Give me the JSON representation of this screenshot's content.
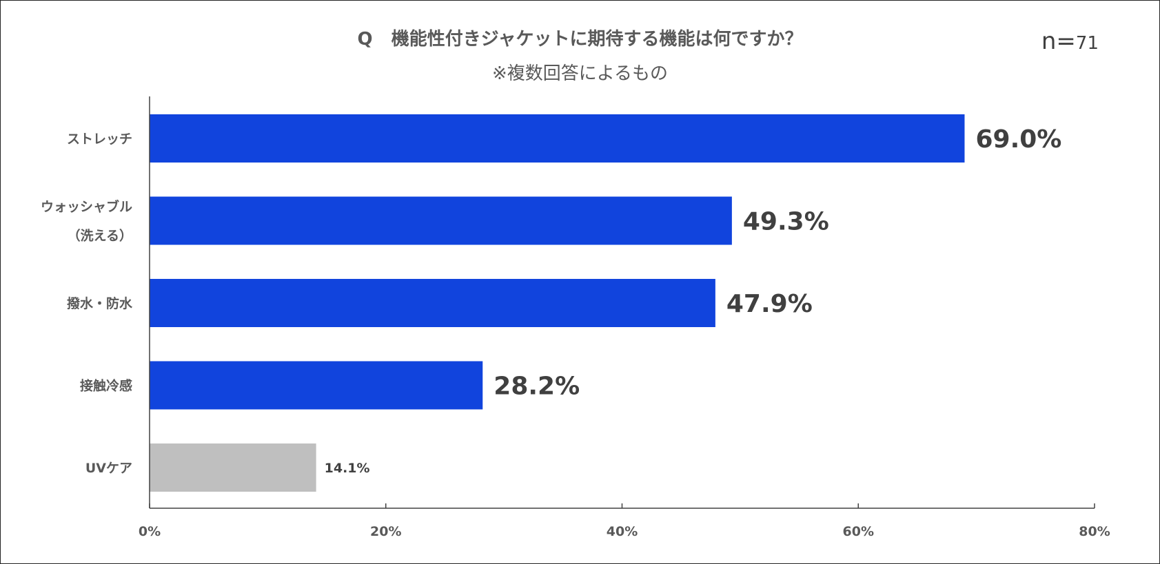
{
  "chart_data": {
    "type": "bar",
    "orientation": "horizontal",
    "title": "Q   機能性付きジャケットに期待する機能は何ですか？",
    "subtitle": "※複数回答によるもの",
    "sample_size_prefix": "n=",
    "sample_size": "71",
    "categories": [
      [
        "ストレッチ"
      ],
      [
        "ウォッシャブル",
        "（洗える）"
      ],
      [
        "撥水・防水"
      ],
      [
        "接触冷感"
      ],
      [
        "UVケア"
      ]
    ],
    "values": [
      69.0,
      49.3,
      47.9,
      28.2,
      14.1
    ],
    "value_labels": [
      "69.0%",
      "49.3%",
      "47.9%",
      "28.2%",
      "14.1%"
    ],
    "bar_colors": [
      "#1144DD",
      "#1144DD",
      "#1144DD",
      "#1144DD",
      "#BFBFBF"
    ],
    "xlim": [
      0,
      80
    ],
    "xticks": [
      0,
      20,
      40,
      60,
      80
    ],
    "xtick_labels": [
      "0%",
      "20%",
      "40%",
      "60%",
      "80%"
    ],
    "grid": false,
    "legend": "none"
  }
}
